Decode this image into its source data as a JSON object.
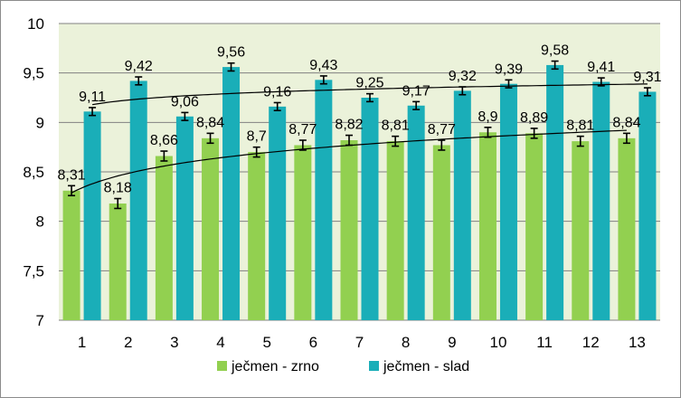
{
  "chart_data": {
    "type": "bar",
    "title": "",
    "xlabel": "",
    "ylabel": "",
    "ylim": [
      7,
      10
    ],
    "yticks": [
      "7",
      "7,5",
      "8",
      "8,5",
      "9",
      "9,5",
      "10"
    ],
    "ytick_values": [
      7,
      7.5,
      8,
      8.5,
      9,
      9.5,
      10
    ],
    "categories": [
      "1",
      "2",
      "3",
      "4",
      "5",
      "6",
      "7",
      "8",
      "9",
      "10",
      "11",
      "12",
      "13"
    ],
    "grid": true,
    "legend_position": "bottom",
    "series": [
      {
        "name": "ječmen - zrno",
        "color": "#92d050",
        "values": [
          8.31,
          8.18,
          8.66,
          8.84,
          8.7,
          8.77,
          8.82,
          8.81,
          8.77,
          8.9,
          8.89,
          8.81,
          8.84
        ],
        "labels": [
          "8,31",
          "8,18",
          "8,66",
          "8,84",
          "8,7",
          "8,77",
          "8,82",
          "8,81",
          "8,77",
          "8,9",
          "8,89",
          "8,81",
          "8,84"
        ],
        "error": 0.05,
        "trendline": "logarithmic"
      },
      {
        "name": "ječmen - slad",
        "color": "#1aaeb8",
        "values": [
          9.11,
          9.42,
          9.06,
          9.56,
          9.16,
          9.43,
          9.25,
          9.17,
          9.32,
          9.39,
          9.58,
          9.41,
          9.31
        ],
        "labels": [
          "9,11",
          "9,42",
          "9,06",
          "9,56",
          "9,16",
          "9,43",
          "9,25",
          "9,17",
          "9,32",
          "9,39",
          "9,58",
          "9,41",
          "9,31"
        ],
        "error": 0.04,
        "trendline": "logarithmic"
      }
    ],
    "colors": {
      "plot_background": "#ebf2da",
      "gridline": "#808080",
      "trendline": "#000000"
    }
  }
}
